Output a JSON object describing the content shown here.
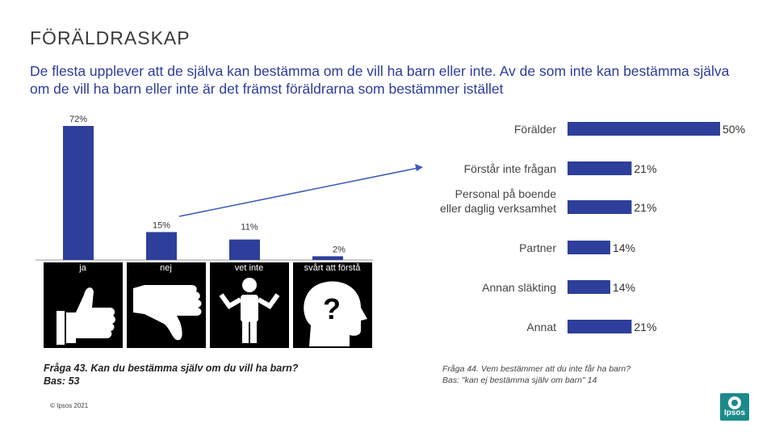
{
  "header": {
    "title": "FÖRÄLDRASKAP",
    "subtitle": "De flesta upplever att de själva kan bestämma om de vill ha barn eller inte. Av de som inte kan bestämma själva om de vill ha barn eller inte är det främst föräldrarna som bestämmer istället"
  },
  "chart_data": [
    {
      "type": "bar",
      "orientation": "vertical",
      "categories": [
        "ja",
        "nej",
        "vet inte",
        "svårt att förstå"
      ],
      "values": [
        72,
        15,
        11,
        2
      ],
      "value_labels": [
        "72%",
        "15%",
        "11%",
        "2%"
      ],
      "ylim": [
        0,
        72
      ],
      "grid": false,
      "color": "#2d3f9b"
    },
    {
      "type": "bar",
      "orientation": "horizontal",
      "categories": [
        "Förälder",
        "Förstår inte frågan",
        "Personal på boende eller daglig verksamhet",
        "Partner",
        "Annan släkting",
        "Annat"
      ],
      "values": [
        50,
        21,
        21,
        14,
        14,
        21
      ],
      "value_labels": [
        "50%",
        "21%",
        "21%",
        "14%",
        "14%",
        "21%"
      ],
      "xlim": [
        0,
        50
      ],
      "grid": false,
      "color": "#2d3f9b"
    }
  ],
  "icons": [
    "thumbs-up-icon",
    "thumbs-down-icon",
    "shrug-person-icon",
    "question-head-icon"
  ],
  "notes": {
    "q43_line1": "Fråga 43. Kan du bestämma själv om du vill ha barn?",
    "q43_line2": "Bas: 53",
    "q44_line1": "Fråga 44. Vem bestämmer att du inte får ha barn?",
    "q44_line2": "Bas: \"kan ej bestämma själv om barn\" 14"
  },
  "footer": {
    "copyright": "© Ipsos 2021",
    "logo_text": "Ipsos"
  },
  "colors": {
    "bar": "#2d3f9b",
    "subtitle": "#2c3c9c",
    "logo": "#1b8a8a",
    "arrow": "#3b5bb5"
  }
}
